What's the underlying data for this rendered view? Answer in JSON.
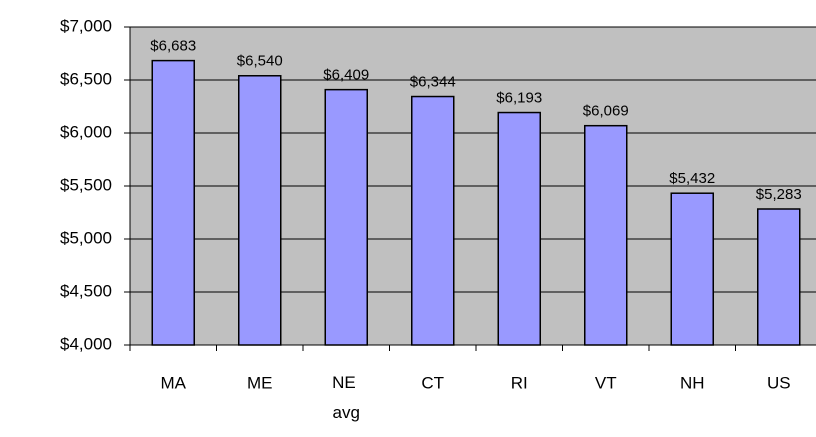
{
  "chart_data": {
    "type": "bar",
    "categories": [
      "MA",
      "ME",
      "NE avg",
      "CT",
      "RI",
      "VT",
      "NH",
      "US"
    ],
    "values": [
      6683,
      6540,
      6409,
      6344,
      6193,
      6069,
      5432,
      5283
    ],
    "value_labels": [
      "$6,683",
      "$6,540",
      "$6,409",
      "$6,344",
      "$6,193",
      "$6,069",
      "$5,432",
      "$5,283"
    ],
    "color": "#9999ff",
    "ylim": [
      4000,
      7000
    ],
    "yticks": [
      {
        "value": 4000,
        "label": "$4,000"
      },
      {
        "value": 4500,
        "label": "$4,500"
      },
      {
        "value": 5000,
        "label": "$5,000"
      },
      {
        "value": 5500,
        "label": "$5,500"
      },
      {
        "value": 6000,
        "label": "$6,000"
      },
      {
        "value": 6500,
        "label": "$6,500"
      },
      {
        "value": 7000,
        "label": "$7,000"
      }
    ],
    "grid": true
  }
}
